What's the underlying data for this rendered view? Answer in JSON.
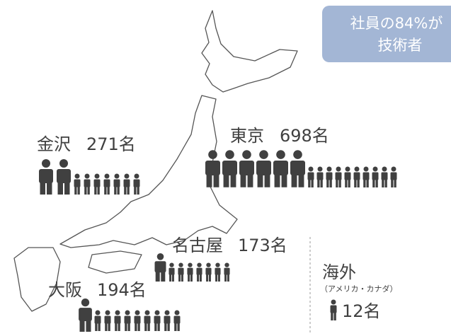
{
  "badge": {
    "line1": "社員の84%が",
    "line2": "技術者"
  },
  "locations": [
    {
      "name": "金沢",
      "count": "271名"
    },
    {
      "name": "東京",
      "count": "698名"
    },
    {
      "name": "名古屋",
      "count": "173名"
    },
    {
      "name": "大阪",
      "count": "194名"
    }
  ],
  "overseas": {
    "name": "海外",
    "note": "（アメリカ・カナダ）",
    "count": "12名"
  }
}
